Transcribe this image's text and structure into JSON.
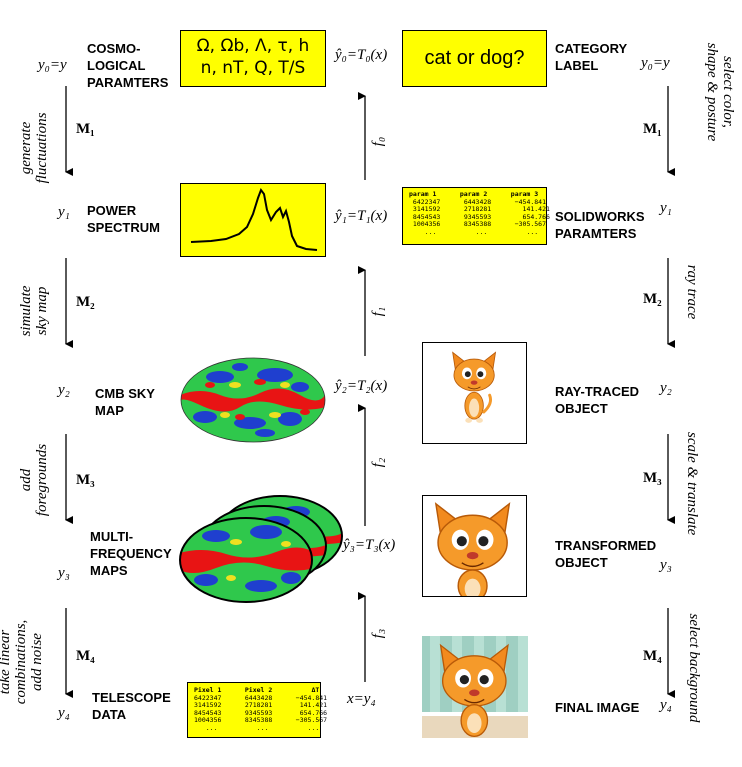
{
  "colors": {
    "highlight": "#ffff00",
    "cmb_red": "#e81414",
    "cmb_green": "#22c04a",
    "cmb_blue": "#1f3fcf"
  },
  "left": {
    "var_y0": "y₀=y",
    "stages": [
      {
        "var": "y₀=y",
        "label": "COSMO-\nLOGICAL\nPARAMTERS"
      },
      {
        "var": "y₁",
        "label": "POWER\nSPECTRUM"
      },
      {
        "var": "y₂",
        "label": "CMB SKY\nMAP"
      },
      {
        "var": "y₃",
        "label": "MULTI-\nFREQUENCY\nMAPS"
      },
      {
        "var": "y₄",
        "label": "TELESCOPE\nDATA"
      }
    ],
    "steps": [
      {
        "op": "M₁",
        "desc": "generate\nfluctuations"
      },
      {
        "op": "M₂",
        "desc": "simulate\nsky map"
      },
      {
        "op": "M₃",
        "desc": "add\nforegrounds"
      },
      {
        "op": "M₄",
        "desc": "take linear\ncombinations,\nadd noise"
      }
    ],
    "param_box": "Ω, Ωb, Λ, τ, h\nn, nT, Q, T/S",
    "table": {
      "headers": [
        "Pixel 1",
        "Pixel 2",
        "ΔT"
      ],
      "rows": [
        [
          "6422347",
          "6443428",
          "−454.841"
        ],
        [
          "3141592",
          "2718281",
          "141.421"
        ],
        [
          "8454543",
          "9345593",
          "654.766"
        ],
        [
          "1004356",
          "8345388",
          "−305.567"
        ],
        [
          "...",
          "...",
          "..."
        ]
      ]
    }
  },
  "center": {
    "estimates": [
      "ŷ₀=T₀(x)",
      "ŷ₁=T₁(x)",
      "ŷ₂=T₂(x)",
      "ŷ₃=T₃(x)",
      "x=y₄"
    ],
    "functions": [
      "f₀",
      "f₁",
      "f₂",
      "f₃"
    ]
  },
  "right": {
    "category_box": "cat or dog?",
    "stages": [
      {
        "var": "y₀=y",
        "label": "CATEGORY\nLABEL"
      },
      {
        "var": "y₁",
        "label": "SOLIDWORKS\nPARAMTERS"
      },
      {
        "var": "y₂",
        "label": "RAY-TRACED\nOBJECT"
      },
      {
        "var": "y₃",
        "label": "TRANSFORMED\nOBJECT"
      },
      {
        "var": "y₄",
        "label": "FINAL IMAGE"
      }
    ],
    "steps": [
      {
        "op": "M₁",
        "desc": "select color,\nshape & posture"
      },
      {
        "op": "M₂",
        "desc": "ray trace"
      },
      {
        "op": "M₃",
        "desc": "scale & translate"
      },
      {
        "op": "M₄",
        "desc": "select background"
      }
    ],
    "table": {
      "headers": [
        "param 1",
        "param 2",
        "param 3"
      ],
      "rows": [
        [
          "6422347",
          "6443428",
          "−454.841"
        ],
        [
          "3141592",
          "2718281",
          "141.421"
        ],
        [
          "8454543",
          "9345593",
          "654.766"
        ],
        [
          "1004356",
          "8345388",
          "−305.567"
        ],
        [
          "...",
          "...",
          "..."
        ]
      ]
    }
  }
}
